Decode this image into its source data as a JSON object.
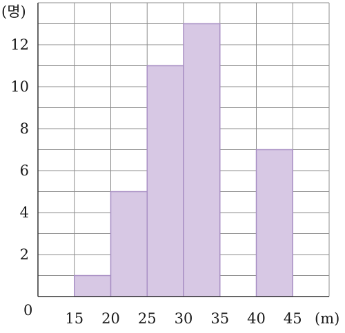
{
  "chart_data": {
    "type": "histogram",
    "bins": [
      {
        "start": 15,
        "end": 20,
        "value": 1
      },
      {
        "start": 20,
        "end": 25,
        "value": 5
      },
      {
        "start": 25,
        "end": 30,
        "value": 11
      },
      {
        "start": 30,
        "end": 35,
        "value": 13
      },
      {
        "start": 35,
        "end": 40,
        "value": 0
      },
      {
        "start": 40,
        "end": 45,
        "value": 7
      }
    ],
    "xlim": [
      10,
      50
    ],
    "ylim": [
      0,
      14
    ],
    "x_ticks": [
      15,
      20,
      25,
      30,
      35,
      40,
      45
    ],
    "y_ticks": [
      2,
      4,
      6,
      8,
      10,
      12
    ],
    "origin_label": "0",
    "x_unit": "(m)",
    "y_unit": "(명)",
    "grid": true,
    "colors": {
      "bar_fill": "#d7c8e4",
      "bar_stroke": "#a88fc4",
      "grid": "#8c8c8c",
      "axis": "#333333"
    }
  }
}
